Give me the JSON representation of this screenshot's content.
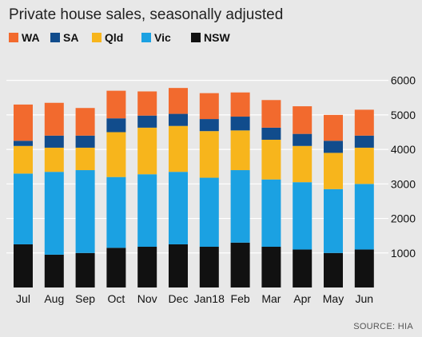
{
  "chart_data": {
    "type": "bar",
    "stacked": true,
    "title": "Private house sales, seasonally adjusted",
    "source": "SOURCE: HIA",
    "categories": [
      "Jul",
      "Aug",
      "Sep",
      "Oct",
      "Nov",
      "Dec",
      "Jan18",
      "Feb",
      "Mar",
      "Apr",
      "May",
      "Jun"
    ],
    "series": [
      {
        "name": "NSW",
        "color": "#111111",
        "values": [
          1250,
          950,
          1000,
          1150,
          1180,
          1250,
          1180,
          1300,
          1180,
          1100,
          1000,
          1100
        ]
      },
      {
        "name": "Vic",
        "color": "#1ba1e2",
        "values": [
          2050,
          2400,
          2400,
          2050,
          2100,
          2100,
          2000,
          2100,
          1950,
          1950,
          1850,
          1900
        ]
      },
      {
        "name": "Qld",
        "color": "#f7b51c",
        "values": [
          800,
          700,
          650,
          1300,
          1350,
          1330,
          1350,
          1150,
          1150,
          1050,
          1050,
          1050
        ]
      },
      {
        "name": "SA",
        "color": "#114c8c",
        "values": [
          150,
          350,
          350,
          400,
          350,
          350,
          350,
          400,
          350,
          350,
          350,
          350
        ]
      },
      {
        "name": "WA",
        "color": "#f26a2e",
        "values": [
          1050,
          950,
          800,
          800,
          700,
          750,
          750,
          700,
          800,
          800,
          750,
          750
        ]
      }
    ],
    "legend_order": [
      "WA",
      "SA",
      "Qld",
      "Vic",
      "NSW"
    ],
    "legend_position": "top-left",
    "y_ticks": [
      1000,
      2000,
      3000,
      4000,
      5000,
      6000
    ],
    "ylim": [
      0,
      6200
    ],
    "yaxis_position": "right",
    "grid": true
  }
}
